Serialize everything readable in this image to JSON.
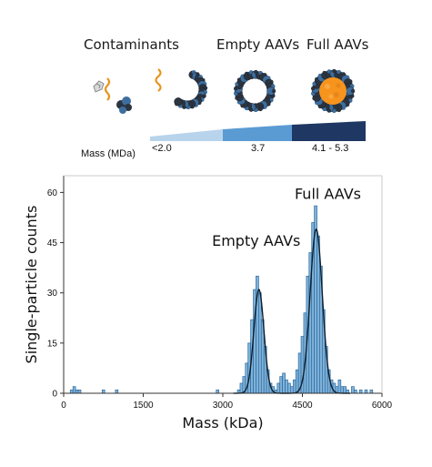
{
  "illustration": {
    "headers": {
      "contaminants": "Contaminants",
      "empty": "Empty AAVs",
      "full": "Full AAVs"
    },
    "mass_label": "Mass (MDa)",
    "mass_values": [
      "<2.0",
      "3.7",
      "4.1 - 5.3"
    ],
    "colors": {
      "band_light": "#b8d4ec",
      "band_mid": "#5b9bd3",
      "band_dark": "#1f3763",
      "capsid_dark": "#2b3440",
      "capsid_blue": "#3d6e9e",
      "dna_orange": "#e8951f",
      "genome_orange": "#f7941d"
    }
  },
  "chart_data": {
    "type": "bar",
    "xlabel": "Mass (kDa)",
    "ylabel": "Single-particle counts",
    "xlim": [
      0,
      6000
    ],
    "ylim": [
      0,
      65
    ],
    "xticks": [
      0,
      1500,
      3000,
      4500,
      6000
    ],
    "yticks": [
      0,
      15,
      30,
      45,
      60
    ],
    "bin_width": 50,
    "histogram": [
      {
        "x": 150,
        "y": 1
      },
      {
        "x": 200,
        "y": 2
      },
      {
        "x": 250,
        "y": 1
      },
      {
        "x": 300,
        "y": 1
      },
      {
        "x": 750,
        "y": 1
      },
      {
        "x": 1000,
        "y": 1
      },
      {
        "x": 2900,
        "y": 1
      },
      {
        "x": 3300,
        "y": 1
      },
      {
        "x": 3350,
        "y": 3
      },
      {
        "x": 3400,
        "y": 5
      },
      {
        "x": 3450,
        "y": 9
      },
      {
        "x": 3500,
        "y": 15
      },
      {
        "x": 3550,
        "y": 22
      },
      {
        "x": 3600,
        "y": 31
      },
      {
        "x": 3650,
        "y": 35
      },
      {
        "x": 3700,
        "y": 30
      },
      {
        "x": 3750,
        "y": 22
      },
      {
        "x": 3800,
        "y": 14
      },
      {
        "x": 3850,
        "y": 7
      },
      {
        "x": 3900,
        "y": 3
      },
      {
        "x": 3950,
        "y": 2
      },
      {
        "x": 4000,
        "y": 1
      },
      {
        "x": 4050,
        "y": 3
      },
      {
        "x": 4100,
        "y": 5
      },
      {
        "x": 4150,
        "y": 6
      },
      {
        "x": 4200,
        "y": 4
      },
      {
        "x": 4250,
        "y": 3
      },
      {
        "x": 4300,
        "y": 2
      },
      {
        "x": 4350,
        "y": 4
      },
      {
        "x": 4400,
        "y": 7
      },
      {
        "x": 4450,
        "y": 12
      },
      {
        "x": 4500,
        "y": 17
      },
      {
        "x": 4550,
        "y": 24
      },
      {
        "x": 4600,
        "y": 35
      },
      {
        "x": 4650,
        "y": 42
      },
      {
        "x": 4700,
        "y": 51
      },
      {
        "x": 4750,
        "y": 56
      },
      {
        "x": 4800,
        "y": 47
      },
      {
        "x": 4850,
        "y": 38
      },
      {
        "x": 4900,
        "y": 25
      },
      {
        "x": 4950,
        "y": 14
      },
      {
        "x": 5000,
        "y": 7
      },
      {
        "x": 5050,
        "y": 4
      },
      {
        "x": 5100,
        "y": 3
      },
      {
        "x": 5150,
        "y": 2
      },
      {
        "x": 5200,
        "y": 4
      },
      {
        "x": 5250,
        "y": 2
      },
      {
        "x": 5300,
        "y": 2
      },
      {
        "x": 5350,
        "y": 1
      },
      {
        "x": 5450,
        "y": 2
      },
      {
        "x": 5500,
        "y": 1
      },
      {
        "x": 5600,
        "y": 1
      },
      {
        "x": 5700,
        "y": 1
      },
      {
        "x": 5800,
        "y": 1
      }
    ],
    "fit_peaks": [
      {
        "mu": 3680,
        "sigma": 95,
        "amp": 31
      },
      {
        "mu": 4760,
        "sigma": 115,
        "amp": 49
      }
    ],
    "annotations": [
      {
        "text": "Empty AAVs",
        "x": 3630,
        "y": 44
      },
      {
        "text": "Full AAVs",
        "x": 4980,
        "y": 58
      }
    ],
    "colors": {
      "bar_fill": "#7fb2d9",
      "bar_edge": "#2d6a9f",
      "fit": "#0d1f2d",
      "axis": "#333333"
    }
  }
}
